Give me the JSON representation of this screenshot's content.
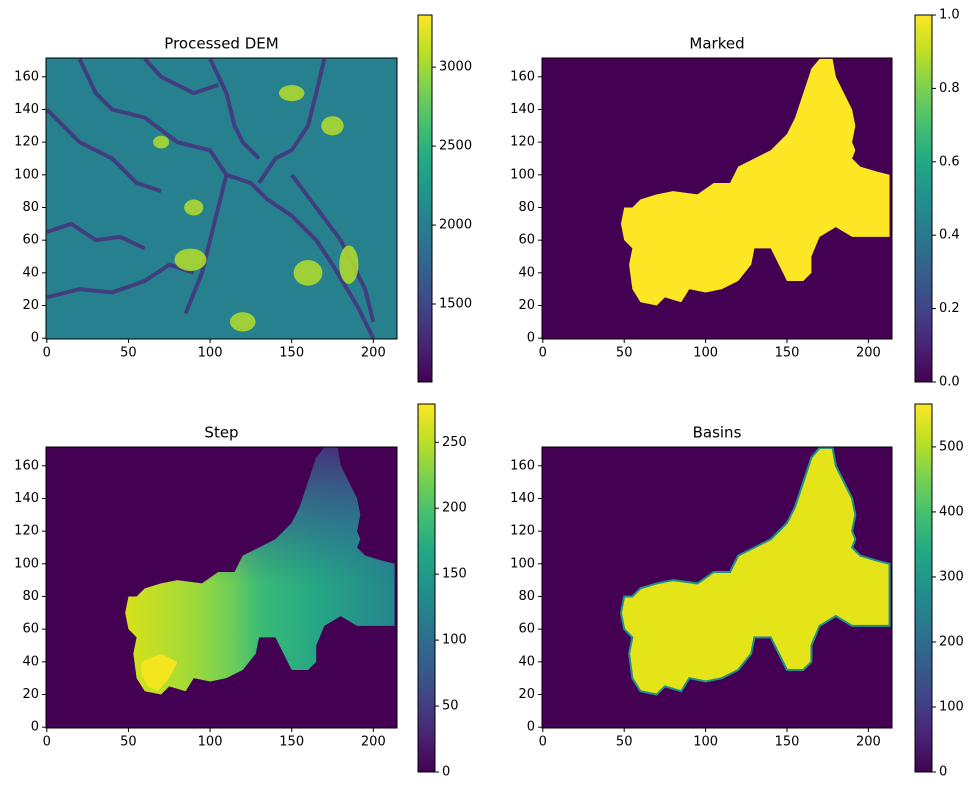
{
  "chart_data": [
    {
      "type": "heatmap",
      "title": "Processed DEM",
      "xlim": [
        -0.5,
        214.5
      ],
      "ylim": [
        -0.5,
        171.5
      ],
      "xticks": [
        0,
        50,
        100,
        150,
        200
      ],
      "yticks": [
        0,
        20,
        40,
        60,
        80,
        100,
        120,
        140,
        160
      ],
      "colormap": "viridis",
      "clim": [
        1006,
        3330
      ],
      "cticks": [
        1500,
        2000,
        2500,
        3000
      ]
    },
    {
      "type": "heatmap",
      "title": "Marked",
      "xlim": [
        -0.5,
        214.5
      ],
      "ylim": [
        -0.5,
        171.5
      ],
      "xticks": [
        0,
        50,
        100,
        150,
        200
      ],
      "yticks": [
        0,
        20,
        40,
        60,
        80,
        100,
        120,
        140,
        160
      ],
      "colormap": "viridis",
      "clim": [
        0,
        1
      ],
      "cticks": [
        {
          "value": 0,
          "label": "0.0"
        },
        {
          "value": 0.2,
          "label": "0.2"
        },
        {
          "value": 0.4,
          "label": "0.4"
        },
        {
          "value": 0.6,
          "label": "0.6"
        },
        {
          "value": 0.8,
          "label": "0.8"
        },
        {
          "value": 1,
          "label": "1.0"
        }
      ]
    },
    {
      "type": "heatmap",
      "title": "Step",
      "xlim": [
        -0.5,
        214.5
      ],
      "ylim": [
        -0.5,
        171.5
      ],
      "xticks": [
        0,
        50,
        100,
        150,
        200
      ],
      "yticks": [
        0,
        20,
        40,
        60,
        80,
        100,
        120,
        140,
        160
      ],
      "colormap": "viridis",
      "clim": [
        0,
        279
      ],
      "cticks": [
        0,
        50,
        100,
        150,
        200,
        250
      ]
    },
    {
      "type": "heatmap",
      "title": "Basins",
      "xlim": [
        -0.5,
        214.5
      ],
      "ylim": [
        -0.5,
        171.5
      ],
      "xticks": [
        0,
        50,
        100,
        150,
        200
      ],
      "yticks": [
        0,
        20,
        40,
        60,
        80,
        100,
        120,
        140,
        160
      ],
      "colormap": "viridis",
      "clim": [
        0,
        566
      ],
      "cticks": [
        0,
        100,
        200,
        300,
        400,
        500
      ]
    }
  ]
}
